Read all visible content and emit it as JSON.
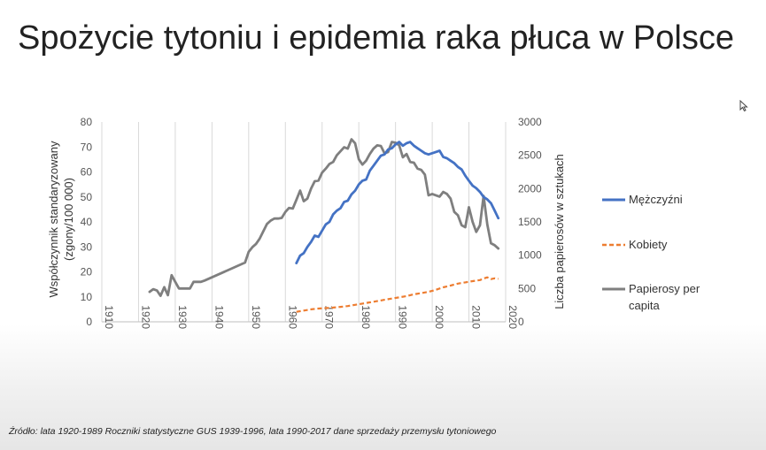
{
  "slide": {
    "title": "Spożycie tytoniu i epidemia raka płuca w Polsce",
    "source": "Źródło: lata 1920-1989 Roczniki statystyczne GUS 1939-1996, lata 1990-2017 dane sprzedaży przemysłu tytoniowego"
  },
  "chart_data": {
    "type": "line",
    "title": "",
    "ylabel_left_lines": [
      "Współczynnik standaryzowany",
      "(zgony/100 000)"
    ],
    "ylabel_right": "Liczba papierosów w sztukach",
    "xlim": [
      1910,
      2020
    ],
    "x_ticks": [
      "1910",
      "1920",
      "1930",
      "1940",
      "1950",
      "1960",
      "1970",
      "1980",
      "1990",
      "2000",
      "2010",
      "2020"
    ],
    "ylim_left": [
      0,
      80
    ],
    "y_left_ticks": [
      "0",
      "10",
      "20",
      "30",
      "40",
      "50",
      "60",
      "70",
      "80"
    ],
    "ylim_right": [
      0,
      3000
    ],
    "y_right_ticks": [
      "0",
      "500",
      "1000",
      "1500",
      "2000",
      "2500",
      "3000"
    ],
    "grid": "vertical",
    "legend_position": "right",
    "series": [
      {
        "name": "Mężczyźni",
        "axis": "left",
        "color": "#4472C4",
        "dash": "solid",
        "x": [
          1963,
          1964,
          1965,
          1966,
          1967,
          1968,
          1969,
          1970,
          1971,
          1972,
          1973,
          1974,
          1975,
          1976,
          1977,
          1978,
          1979,
          1980,
          1981,
          1982,
          1983,
          1984,
          1985,
          1986,
          1987,
          1988,
          1989,
          1990,
          1991,
          1992,
          1993,
          1994,
          1995,
          1996,
          1997,
          1998,
          1999,
          2000,
          2001,
          2002,
          2003,
          2004,
          2005,
          2006,
          2007,
          2008,
          2009,
          2010,
          2011,
          2012,
          2013,
          2014,
          2015,
          2016,
          2017,
          2018
        ],
        "y": [
          23.5,
          26.5,
          27.5,
          30,
          32,
          34.5,
          34,
          36.5,
          39,
          40,
          43,
          44.5,
          45.5,
          48,
          48.5,
          51,
          52.5,
          55,
          56.5,
          57,
          60.5,
          62.5,
          64.5,
          66.5,
          67,
          69,
          69.5,
          71,
          72,
          70.5,
          71.5,
          72,
          70.5,
          69.5,
          68.5,
          67.5,
          67,
          67.5,
          68,
          68.5,
          66,
          65.5,
          64.5,
          63.5,
          62,
          61,
          58.5,
          56.5,
          54.5,
          53.5,
          52,
          50,
          49,
          47.5,
          44.5,
          41.5
        ]
      },
      {
        "name": "Kobiety",
        "axis": "left",
        "color": "#ED7D31",
        "dash": "dashed",
        "x": [
          1963,
          1965,
          1967,
          1969,
          1971,
          1973,
          1975,
          1977,
          1979,
          1981,
          1983,
          1985,
          1987,
          1989,
          1991,
          1993,
          1995,
          1997,
          1999,
          2001,
          2003,
          2005,
          2007,
          2009,
          2011,
          2013,
          2014,
          2015,
          2016,
          2017,
          2018
        ],
        "y": [
          4,
          4.5,
          5,
          5.3,
          5.5,
          5.7,
          6,
          6.3,
          6.8,
          7.3,
          7.8,
          8.3,
          8.8,
          9.3,
          9.8,
          10.3,
          11,
          11.5,
          12,
          12.8,
          13.8,
          14.5,
          15.3,
          15.8,
          16.3,
          16.7,
          17.3,
          17.8,
          17.1,
          17.4,
          17.2
        ]
      },
      {
        "name": "Papierosy per capita",
        "axis": "right",
        "color": "#7F7F7F",
        "dash": "solid",
        "x": [
          1923,
          1924,
          1925,
          1926,
          1927,
          1928,
          1929,
          1930,
          1931,
          1932,
          1933,
          1934,
          1935,
          1936,
          1937,
          1938,
          1949,
          1950,
          1951,
          1952,
          1953,
          1954,
          1955,
          1956,
          1957,
          1958,
          1959,
          1960,
          1961,
          1962,
          1963,
          1964,
          1965,
          1966,
          1967,
          1968,
          1969,
          1970,
          1971,
          1972,
          1973,
          1974,
          1975,
          1976,
          1977,
          1978,
          1979,
          1980,
          1981,
          1982,
          1983,
          1984,
          1985,
          1986,
          1987,
          1988,
          1989,
          1990,
          1991,
          1992,
          1993,
          1994,
          1995,
          1996,
          1997,
          1998,
          1999,
          2000,
          2001,
          2002,
          2003,
          2004,
          2005,
          2006,
          2007,
          2008,
          2009,
          2010,
          2011,
          2012,
          2013,
          2014,
          2015,
          2016,
          2017,
          2018
        ],
        "y": [
          450,
          490,
          470,
          390,
          520,
          400,
          700,
          600,
          500,
          500,
          500,
          500,
          600,
          600,
          600,
          620,
          890,
          1050,
          1120,
          1170,
          1250,
          1360,
          1470,
          1520,
          1550,
          1550,
          1560,
          1650,
          1710,
          1700,
          1830,
          1970,
          1810,
          1850,
          2000,
          2110,
          2120,
          2240,
          2300,
          2370,
          2400,
          2500,
          2560,
          2620,
          2600,
          2740,
          2680,
          2440,
          2360,
          2420,
          2520,
          2600,
          2650,
          2640,
          2530,
          2550,
          2700,
          2690,
          2650,
          2470,
          2520,
          2400,
          2390,
          2300,
          2280,
          2210,
          1900,
          1920,
          1900,
          1880,
          1950,
          1920,
          1850,
          1650,
          1600,
          1450,
          1420,
          1720,
          1500,
          1350,
          1450,
          1890,
          1460,
          1180,
          1150,
          1100
        ]
      }
    ]
  }
}
